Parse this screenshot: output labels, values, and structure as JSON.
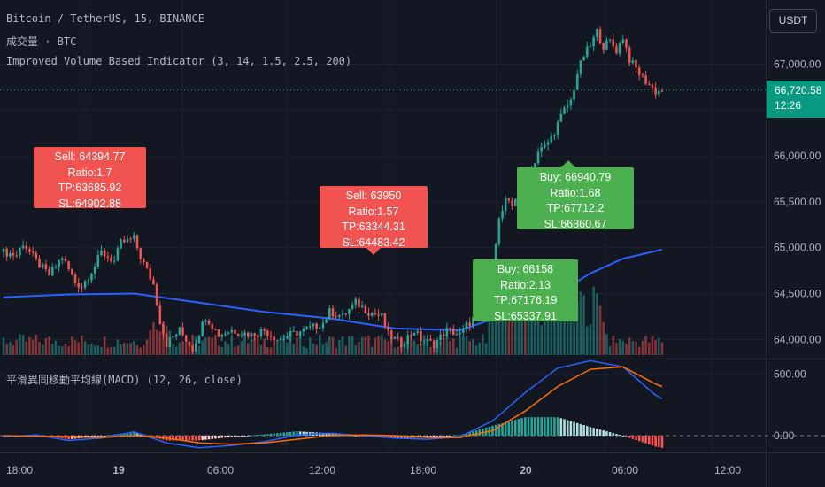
{
  "header": {
    "symbol_line": "Bitcoin / TetherUS, 15, BINANCE",
    "volume_line": "成交量 · BTC",
    "indicator_line": "Improved Volume Based Indicator (3, 14, 1.5, 2.5, 200)",
    "macd_line": "平滑異同移動平均線(MACD) (12, 26, close)"
  },
  "price_axis": {
    "currency": "USDT",
    "last_price": "66,720.58",
    "countdown": "12:26"
  },
  "colors": {
    "up": "#26a69a",
    "down": "#ef5350",
    "ma": "#2962ff",
    "signal": "#ff6d00",
    "macd": "#2962ff"
  },
  "chart_data": [
    {
      "type": "candlestick",
      "symbol": "BTCUSDT",
      "y_ticks": [
        "67,000.00",
        "66,500.00",
        "66,000.00",
        "65,500.00",
        "65,000.00",
        "64,500.00",
        "64,000.00"
      ],
      "y_tick_values": [
        67000,
        66500,
        66000,
        65500,
        65000,
        64500,
        64000
      ],
      "ylim": [
        63800,
        67700
      ],
      "x_ticks": [
        "18:00",
        "19",
        "06:00",
        "12:00",
        "18:00",
        "20",
        "06:00",
        "12:00"
      ],
      "last_price": 66720.58,
      "close_path": [
        [
          0,
          64950
        ],
        [
          4,
          64920
        ],
        [
          6,
          65050
        ],
        [
          10,
          64850
        ],
        [
          14,
          64700
        ],
        [
          18,
          64900
        ],
        [
          22,
          64620
        ],
        [
          24,
          64580
        ],
        [
          28,
          64800
        ],
        [
          30,
          64950
        ],
        [
          34,
          64850
        ],
        [
          36,
          65050
        ],
        [
          40,
          65100
        ],
        [
          42,
          64900
        ],
        [
          46,
          64600
        ],
        [
          48,
          64200
        ],
        [
          50,
          63950
        ],
        [
          54,
          64100
        ],
        [
          58,
          63900
        ],
        [
          62,
          64250
        ],
        [
          66,
          64050
        ],
        [
          70,
          64100
        ],
        [
          76,
          64050
        ],
        [
          80,
          64100
        ],
        [
          84,
          64000
        ],
        [
          88,
          64050
        ],
        [
          94,
          64120
        ],
        [
          98,
          64180
        ],
        [
          100,
          64300
        ],
        [
          104,
          64250
        ],
        [
          108,
          64400
        ],
        [
          112,
          64300
        ],
        [
          116,
          64250
        ],
        [
          118,
          64050
        ],
        [
          122,
          63950
        ],
        [
          126,
          64100
        ],
        [
          128,
          64000
        ],
        [
          132,
          63950
        ],
        [
          136,
          64100
        ],
        [
          140,
          64050
        ],
        [
          142,
          64150
        ],
        [
          146,
          64300
        ],
        [
          148,
          64600
        ],
        [
          150,
          64850
        ],
        [
          152,
          65300
        ],
        [
          154,
          65500
        ],
        [
          156,
          65450
        ],
        [
          158,
          65650
        ],
        [
          160,
          65700
        ],
        [
          162,
          65850
        ],
        [
          164,
          66050
        ],
        [
          166,
          66100
        ],
        [
          168,
          66200
        ],
        [
          170,
          66350
        ],
        [
          172,
          66500
        ],
        [
          174,
          66600
        ],
        [
          176,
          66900
        ],
        [
          178,
          67100
        ],
        [
          180,
          67200
        ],
        [
          182,
          67350
        ],
        [
          184,
          67200
        ],
        [
          186,
          67250
        ],
        [
          188,
          67150
        ],
        [
          190,
          67300
        ],
        [
          192,
          67050
        ],
        [
          194,
          66950
        ],
        [
          196,
          66850
        ],
        [
          198,
          66780
        ],
        [
          200,
          66700
        ],
        [
          202,
          66720
        ]
      ],
      "moving_average": [
        [
          0,
          64460
        ],
        [
          20,
          64490
        ],
        [
          40,
          64500
        ],
        [
          60,
          64400
        ],
        [
          80,
          64300
        ],
        [
          100,
          64230
        ],
        [
          120,
          64120
        ],
        [
          140,
          64100
        ],
        [
          160,
          64340
        ],
        [
          170,
          64500
        ],
        [
          180,
          64720
        ],
        [
          190,
          64880
        ],
        [
          202,
          64980
        ]
      ],
      "signals": [
        {
          "side": "sell",
          "text": "Sell: 64394.77 Ratio:1.7",
          "tp": "TP:63685.92",
          "sl": "SL:64902.88",
          "bar": 38
        },
        {
          "side": "sell",
          "text": "Sell: 63950 Ratio:1.57",
          "tp": "TP:63344.31",
          "sl": "SL:64483.42",
          "bar": 114
        },
        {
          "side": "buy",
          "text": "Buy: 66940.79 Ratio:1.68",
          "tp": "TP:67712.2",
          "sl": "SL:66360.67",
          "bar": 172
        },
        {
          "side": "buy",
          "text": "Buy: 66158 Ratio:2.13",
          "tp": "TP:67176.19",
          "sl": "SL:65337.91",
          "bar": 158
        }
      ]
    },
    {
      "type": "line",
      "name": "MACD",
      "y_ticks": [
        "500.00",
        "0.00"
      ],
      "y_tick_values": [
        500,
        0
      ],
      "ylim": [
        -130,
        620
      ],
      "macd": [
        [
          0,
          -10
        ],
        [
          10,
          5
        ],
        [
          20,
          -40
        ],
        [
          30,
          -20
        ],
        [
          40,
          30
        ],
        [
          50,
          -60
        ],
        [
          60,
          -100
        ],
        [
          70,
          -80
        ],
        [
          80,
          -50
        ],
        [
          90,
          5
        ],
        [
          100,
          20
        ],
        [
          110,
          0
        ],
        [
          120,
          -20
        ],
        [
          130,
          -30
        ],
        [
          140,
          -10
        ],
        [
          150,
          120
        ],
        [
          160,
          350
        ],
        [
          170,
          550
        ],
        [
          180,
          610
        ],
        [
          190,
          560
        ],
        [
          200,
          330
        ],
        [
          202,
          300
        ]
      ],
      "signal": [
        [
          0,
          0
        ],
        [
          10,
          -5
        ],
        [
          20,
          -10
        ],
        [
          30,
          -15
        ],
        [
          40,
          0
        ],
        [
          50,
          -20
        ],
        [
          60,
          -60
        ],
        [
          70,
          -70
        ],
        [
          80,
          -60
        ],
        [
          90,
          -30
        ],
        [
          100,
          0
        ],
        [
          110,
          5
        ],
        [
          120,
          0
        ],
        [
          130,
          -15
        ],
        [
          140,
          -15
        ],
        [
          150,
          40
        ],
        [
          160,
          200
        ],
        [
          170,
          400
        ],
        [
          180,
          540
        ],
        [
          190,
          560
        ],
        [
          200,
          420
        ],
        [
          202,
          400
        ]
      ]
    }
  ]
}
